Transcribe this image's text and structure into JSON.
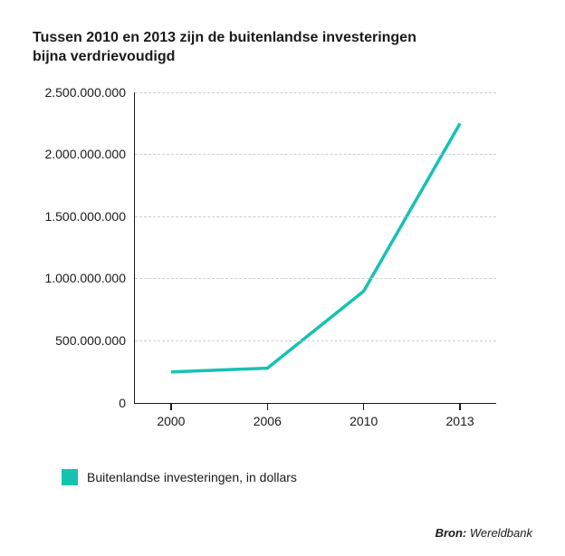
{
  "title": "Tussen 2010 en 2013 zijn de buitenlandse investeringen bijna verdrievoudigd",
  "chart": {
    "type": "line",
    "series_color": "#16c2b3",
    "line_width": 3.5,
    "background_color": "#ffffff",
    "grid_color": "#cfcfcf",
    "axis_color": "#1a1a1a",
    "x": {
      "categories": [
        "2000",
        "2006",
        "2010",
        "2013"
      ]
    },
    "y": {
      "min": 0,
      "max": 2500000000,
      "ticks": [
        {
          "v": 0,
          "label": "0"
        },
        {
          "v": 500000000,
          "label": "500.000.000"
        },
        {
          "v": 1000000000,
          "label": "1.000.000.000"
        },
        {
          "v": 1500000000,
          "label": "1.500.000.000"
        },
        {
          "v": 2000000000,
          "label": "2.000.000.000"
        },
        {
          "v": 2500000000,
          "label": "2.500.000.000"
        }
      ]
    },
    "values": [
      250000000,
      280000000,
      900000000,
      2250000000
    ],
    "label_fontsize": 14,
    "title_fontsize": 16
  },
  "legend": {
    "swatch_color": "#16c2b3",
    "label": "Buitenlandse investeringen, in dollars"
  },
  "source": {
    "prefix": "Bron: ",
    "text": "Wereldbank"
  }
}
